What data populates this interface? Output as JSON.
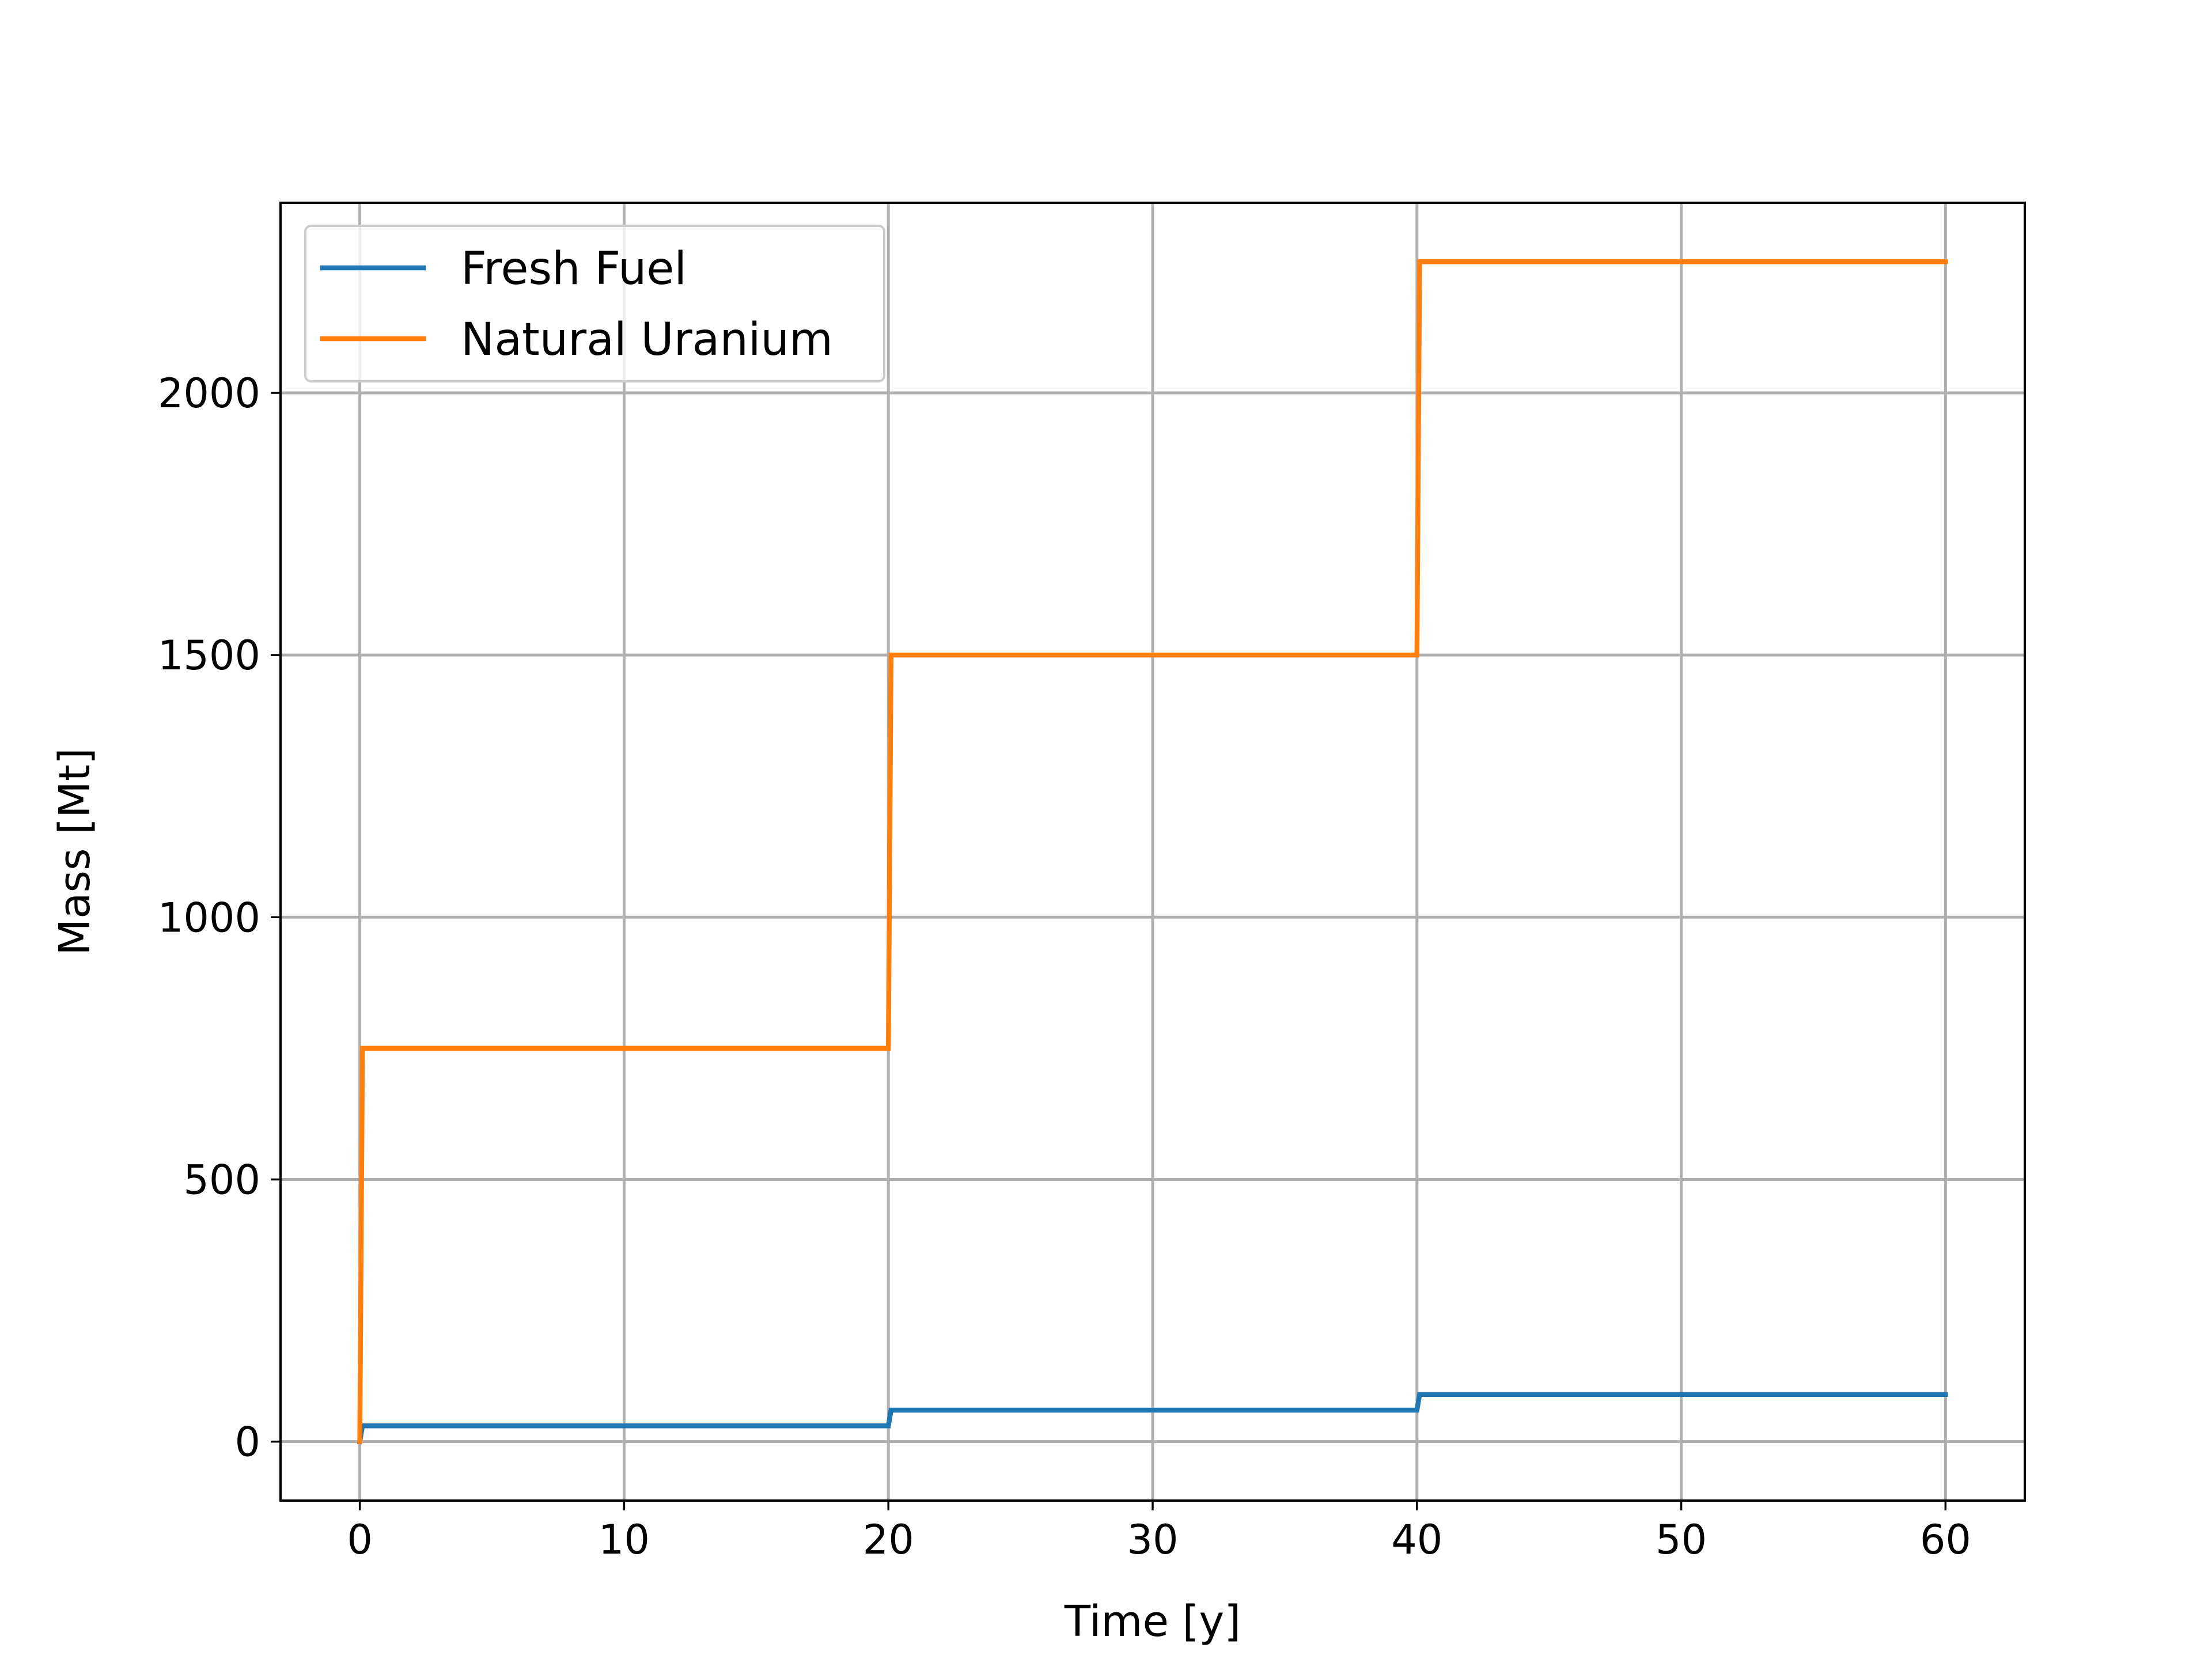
{
  "chart_data": {
    "type": "line",
    "title": "",
    "xlabel": "Time  [y]",
    "ylabel": "Mass  [Mt]",
    "xlim": [
      -3,
      63
    ],
    "ylim": [
      -112.5,
      2362.5
    ],
    "xticks": [
      0,
      10,
      20,
      30,
      40,
      50,
      60
    ],
    "yticks": [
      0,
      500,
      1000,
      1500,
      2000
    ],
    "grid": true,
    "legend": "top-left",
    "series": [
      {
        "name": "Fresh Fuel",
        "color": "#1f77b4",
        "x": [
          0,
          0.1,
          20.0,
          20.1,
          40.0,
          40.1,
          60
        ],
        "y": [
          0,
          30,
          30,
          60,
          60,
          90,
          90
        ]
      },
      {
        "name": "Natural Uranium",
        "color": "#ff7f0e",
        "x": [
          0,
          0.1,
          20.0,
          20.1,
          40.0,
          40.1,
          60
        ],
        "y": [
          0,
          750,
          750,
          1500,
          1500,
          2250,
          2250
        ]
      }
    ]
  }
}
